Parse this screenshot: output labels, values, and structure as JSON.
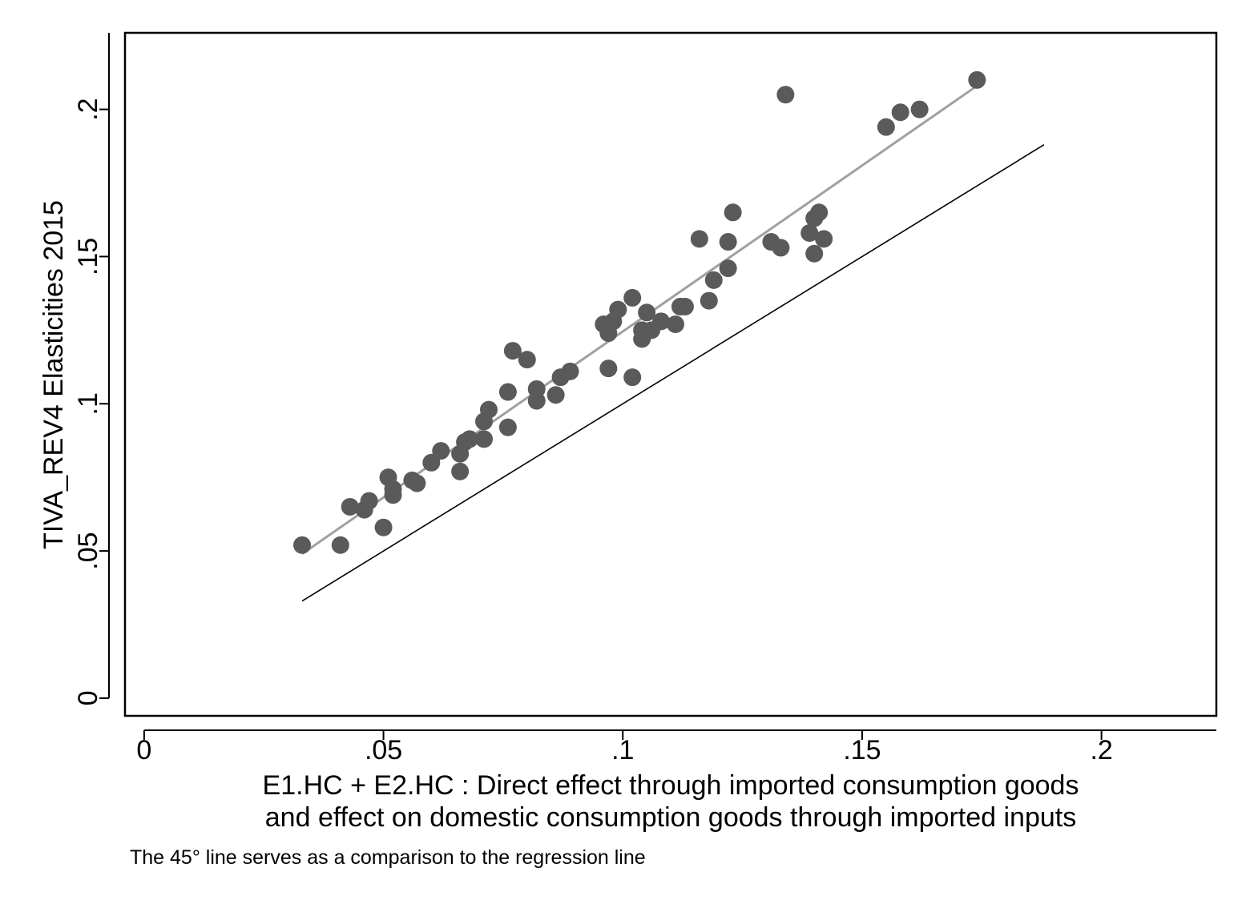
{
  "chart_data": {
    "type": "scatter",
    "title": "",
    "xlabel_lines": [
      "E1.HC + E2.HC : Direct effect through imported consumption goods",
      "and effect on domestic consumption goods through imported inputs"
    ],
    "ylabel": "TIVA_REV4 Elasticities 2015",
    "note": "The 45° line serves as a comparison to the regression line",
    "xlim": [
      -0.004,
      0.224
    ],
    "ylim": [
      -0.006,
      0.226
    ],
    "x_ticks": [
      0,
      0.05,
      0.1,
      0.15,
      0.2
    ],
    "x_tick_labels": [
      "0",
      ".05",
      ".1",
      ".15",
      ".2"
    ],
    "y_ticks": [
      0,
      0.05,
      0.1,
      0.15,
      0.2
    ],
    "y_tick_labels": [
      "0",
      ".05",
      ".1",
      ".15",
      ".2"
    ],
    "grid": false,
    "legend": "none",
    "colors": {
      "points": "#5a5a5a",
      "regression_line": "#a0a0a0",
      "reference_line": "#000000",
      "frame": "#000000"
    },
    "regression_line": {
      "x": [
        0.033,
        0.174
      ],
      "y": [
        0.049,
        0.208
      ]
    },
    "reference_line": {
      "label": "45° line",
      "x": [
        0.033,
        0.188
      ],
      "y": [
        0.033,
        0.188
      ]
    },
    "series": [
      {
        "points": [
          [
            0.033,
            0.052
          ],
          [
            0.041,
            0.052
          ],
          [
            0.043,
            0.065
          ],
          [
            0.046,
            0.064
          ],
          [
            0.047,
            0.067
          ],
          [
            0.05,
            0.058
          ],
          [
            0.051,
            0.075
          ],
          [
            0.052,
            0.069
          ],
          [
            0.052,
            0.071
          ],
          [
            0.056,
            0.074
          ],
          [
            0.057,
            0.073
          ],
          [
            0.06,
            0.08
          ],
          [
            0.062,
            0.084
          ],
          [
            0.066,
            0.083
          ],
          [
            0.066,
            0.077
          ],
          [
            0.067,
            0.087
          ],
          [
            0.068,
            0.088
          ],
          [
            0.071,
            0.088
          ],
          [
            0.071,
            0.094
          ],
          [
            0.072,
            0.098
          ],
          [
            0.076,
            0.104
          ],
          [
            0.076,
            0.092
          ],
          [
            0.077,
            0.118
          ],
          [
            0.08,
            0.115
          ],
          [
            0.082,
            0.101
          ],
          [
            0.082,
            0.105
          ],
          [
            0.086,
            0.103
          ],
          [
            0.087,
            0.109
          ],
          [
            0.089,
            0.111
          ],
          [
            0.096,
            0.127
          ],
          [
            0.097,
            0.124
          ],
          [
            0.098,
            0.128
          ],
          [
            0.097,
            0.112
          ],
          [
            0.099,
            0.132
          ],
          [
            0.102,
            0.136
          ],
          [
            0.102,
            0.109
          ],
          [
            0.104,
            0.125
          ],
          [
            0.104,
            0.122
          ],
          [
            0.105,
            0.131
          ],
          [
            0.106,
            0.125
          ],
          [
            0.108,
            0.128
          ],
          [
            0.111,
            0.127
          ],
          [
            0.112,
            0.133
          ],
          [
            0.113,
            0.133
          ],
          [
            0.116,
            0.156
          ],
          [
            0.118,
            0.135
          ],
          [
            0.119,
            0.142
          ],
          [
            0.122,
            0.155
          ],
          [
            0.122,
            0.146
          ],
          [
            0.123,
            0.165
          ],
          [
            0.131,
            0.155
          ],
          [
            0.133,
            0.153
          ],
          [
            0.134,
            0.205
          ],
          [
            0.139,
            0.158
          ],
          [
            0.14,
            0.151
          ],
          [
            0.14,
            0.163
          ],
          [
            0.141,
            0.165
          ],
          [
            0.142,
            0.156
          ],
          [
            0.155,
            0.194
          ],
          [
            0.158,
            0.199
          ],
          [
            0.162,
            0.2
          ],
          [
            0.174,
            0.21
          ]
        ]
      }
    ]
  }
}
